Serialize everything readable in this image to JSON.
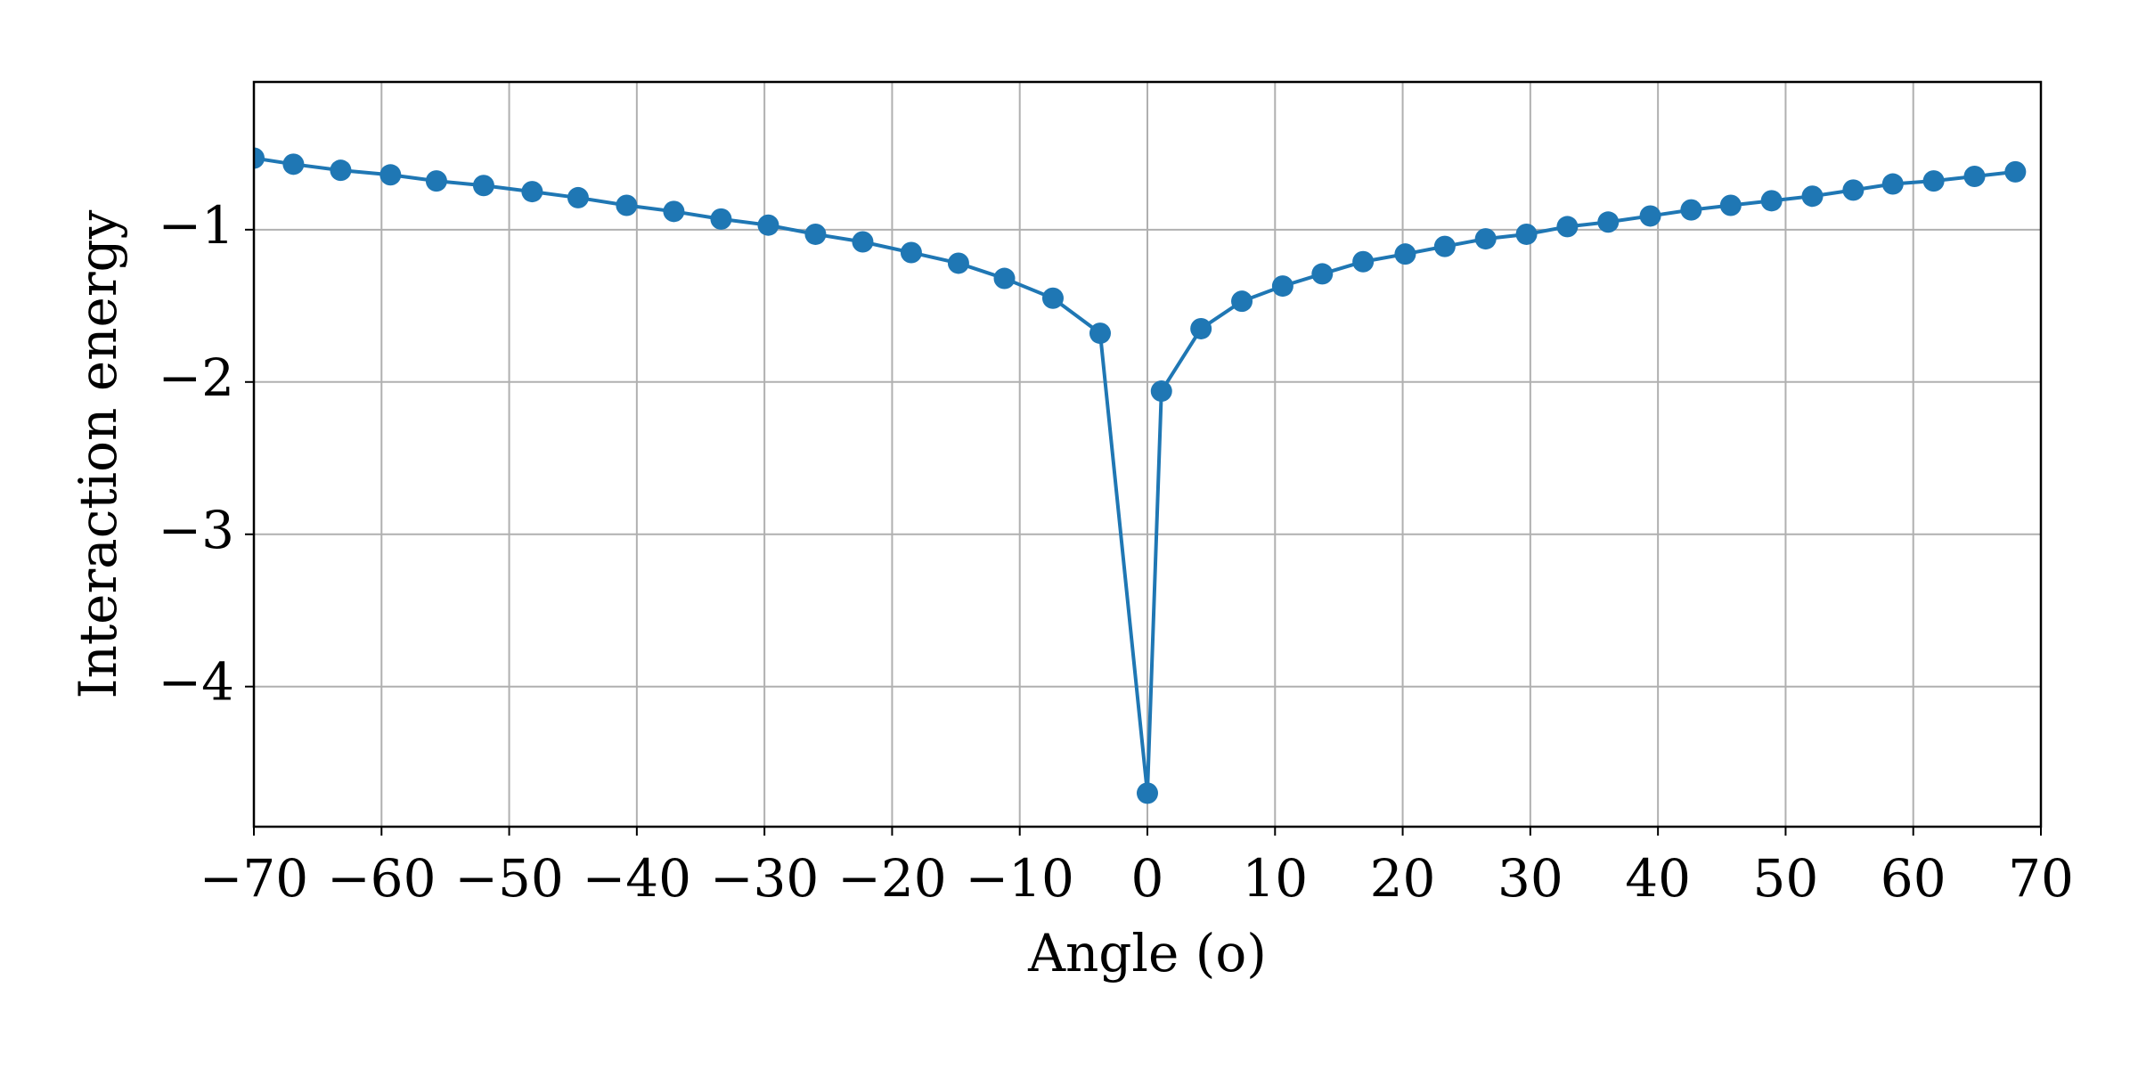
{
  "chart_data": {
    "type": "line",
    "xlabel": "Angle (o)",
    "ylabel": "Interaction energy",
    "x": [
      -70,
      -66.9,
      -63.2,
      -59.3,
      -55.7,
      -52.0,
      -48.2,
      -44.6,
      -40.8,
      -37.1,
      -33.4,
      -29.7,
      -26.0,
      -22.3,
      -18.5,
      -14.8,
      -11.2,
      -7.4,
      -3.7,
      0,
      1.1,
      4.2,
      7.4,
      10.6,
      13.7,
      16.9,
      20.2,
      23.3,
      26.5,
      29.7,
      32.9,
      36.1,
      39.4,
      42.6,
      45.7,
      48.9,
      52.1,
      55.3,
      58.4,
      61.6,
      64.8,
      68.0
    ],
    "series": [
      {
        "color": "#1f77b4",
        "values": [
          -0.53,
          -0.57,
          -0.61,
          -0.64,
          -0.68,
          -0.71,
          -0.75,
          -0.79,
          -0.84,
          -0.88,
          -0.93,
          -0.97,
          -1.03,
          -1.08,
          -1.15,
          -1.22,
          -1.32,
          -1.45,
          -1.68,
          -4.7,
          -2.06,
          -1.65,
          -1.47,
          -1.37,
          -1.29,
          -1.21,
          -1.16,
          -1.11,
          -1.06,
          -1.03,
          -0.98,
          -0.95,
          -0.91,
          -0.87,
          -0.84,
          -0.81,
          -0.78,
          -0.74,
          -0.7,
          -0.68,
          -0.65,
          -0.62
        ]
      }
    ],
    "xlim": [
      -70,
      70
    ],
    "xticks": [
      {
        "value": -70,
        "label": "−70"
      },
      {
        "value": -60,
        "label": "−60"
      },
      {
        "value": -50,
        "label": "−50"
      },
      {
        "value": -40,
        "label": "−40"
      },
      {
        "value": -30,
        "label": "−30"
      },
      {
        "value": -20,
        "label": "−20"
      },
      {
        "value": -10,
        "label": "−10"
      },
      0,
      10,
      20,
      30,
      40,
      50,
      60,
      70
    ],
    "ylim": [
      -4.92,
      -0.03
    ],
    "yticks": [
      {
        "value": -4,
        "label": "−4"
      },
      {
        "value": -3,
        "label": "−3"
      },
      {
        "value": -2,
        "label": "−2"
      },
      {
        "value": -1,
        "label": "−1"
      }
    ],
    "grid": true
  }
}
